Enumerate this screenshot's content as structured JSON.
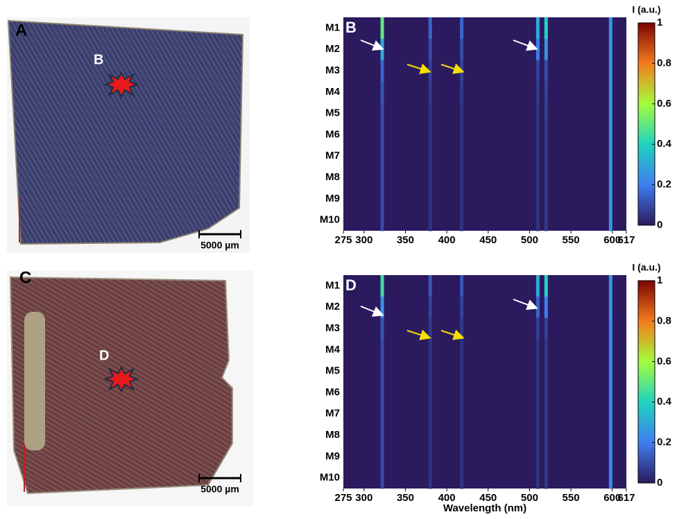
{
  "panels": [
    {
      "letter": "A",
      "marker": "B",
      "scale": "5000 µm"
    },
    {
      "letter": "C",
      "marker": "D",
      "scale": "5000 µm"
    }
  ],
  "chart_data": [
    {
      "type": "heatmap",
      "panel_label": "B",
      "rows": [
        "M1",
        "M2",
        "M3",
        "M4",
        "M5",
        "M6",
        "M7",
        "M8",
        "M9",
        "M10"
      ],
      "x": [
        322,
        380,
        418,
        510,
        520,
        598
      ],
      "values": [
        [
          0.5,
          0.15,
          0.15,
          0.3,
          0.4,
          0.25
        ],
        [
          0.3,
          0.1,
          0.1,
          0.2,
          0.25,
          0.25
        ],
        [
          0.15,
          0.08,
          0.08,
          0.08,
          0.1,
          0.25
        ],
        [
          0.12,
          0.06,
          0.06,
          0.06,
          0.08,
          0.25
        ],
        [
          0.1,
          0.05,
          0.05,
          0.05,
          0.07,
          0.25
        ],
        [
          0.1,
          0.05,
          0.05,
          0.05,
          0.06,
          0.25
        ],
        [
          0.1,
          0.05,
          0.05,
          0.05,
          0.06,
          0.25
        ],
        [
          0.1,
          0.05,
          0.05,
          0.05,
          0.06,
          0.25
        ],
        [
          0.1,
          0.05,
          0.05,
          0.05,
          0.06,
          0.25
        ],
        [
          0.1,
          0.05,
          0.05,
          0.05,
          0.06,
          0.25
        ]
      ],
      "xlim": [
        275,
        617
      ],
      "xticks": [
        275,
        300,
        350,
        400,
        450,
        500,
        550,
        600,
        617
      ],
      "colorbar": {
        "title": "I (a.u.)",
        "lim": [
          0,
          1
        ],
        "ticks": [
          0,
          0.2,
          0.4,
          0.6,
          0.8,
          1
        ]
      }
    },
    {
      "type": "heatmap",
      "panel_label": "D",
      "rows": [
        "M1",
        "M2",
        "M3",
        "M4",
        "M5",
        "M6",
        "M7",
        "M8",
        "M9",
        "M10"
      ],
      "x": [
        322,
        380,
        418,
        510,
        520,
        598
      ],
      "values": [
        [
          0.45,
          0.12,
          0.12,
          0.3,
          0.4,
          0.25
        ],
        [
          0.25,
          0.08,
          0.08,
          0.15,
          0.2,
          0.25
        ],
        [
          0.12,
          0.06,
          0.06,
          0.07,
          0.08,
          0.22
        ],
        [
          0.1,
          0.05,
          0.05,
          0.05,
          0.06,
          0.22
        ],
        [
          0.1,
          0.05,
          0.05,
          0.05,
          0.06,
          0.22
        ],
        [
          0.1,
          0.05,
          0.05,
          0.05,
          0.06,
          0.22
        ],
        [
          0.1,
          0.05,
          0.05,
          0.05,
          0.06,
          0.22
        ],
        [
          0.1,
          0.05,
          0.05,
          0.05,
          0.06,
          0.22
        ],
        [
          0.1,
          0.05,
          0.05,
          0.05,
          0.06,
          0.22
        ],
        [
          0.1,
          0.05,
          0.05,
          0.05,
          0.06,
          0.22
        ]
      ],
      "xlim": [
        275,
        617
      ],
      "xticks": [
        275,
        300,
        350,
        400,
        450,
        500,
        550,
        600,
        617
      ],
      "xlabel": "Wavelength (nm)",
      "colorbar": {
        "title": "I (a.u.)",
        "lim": [
          0,
          1
        ],
        "ticks": [
          0,
          0.2,
          0.4,
          0.6,
          0.8,
          1
        ]
      }
    }
  ]
}
